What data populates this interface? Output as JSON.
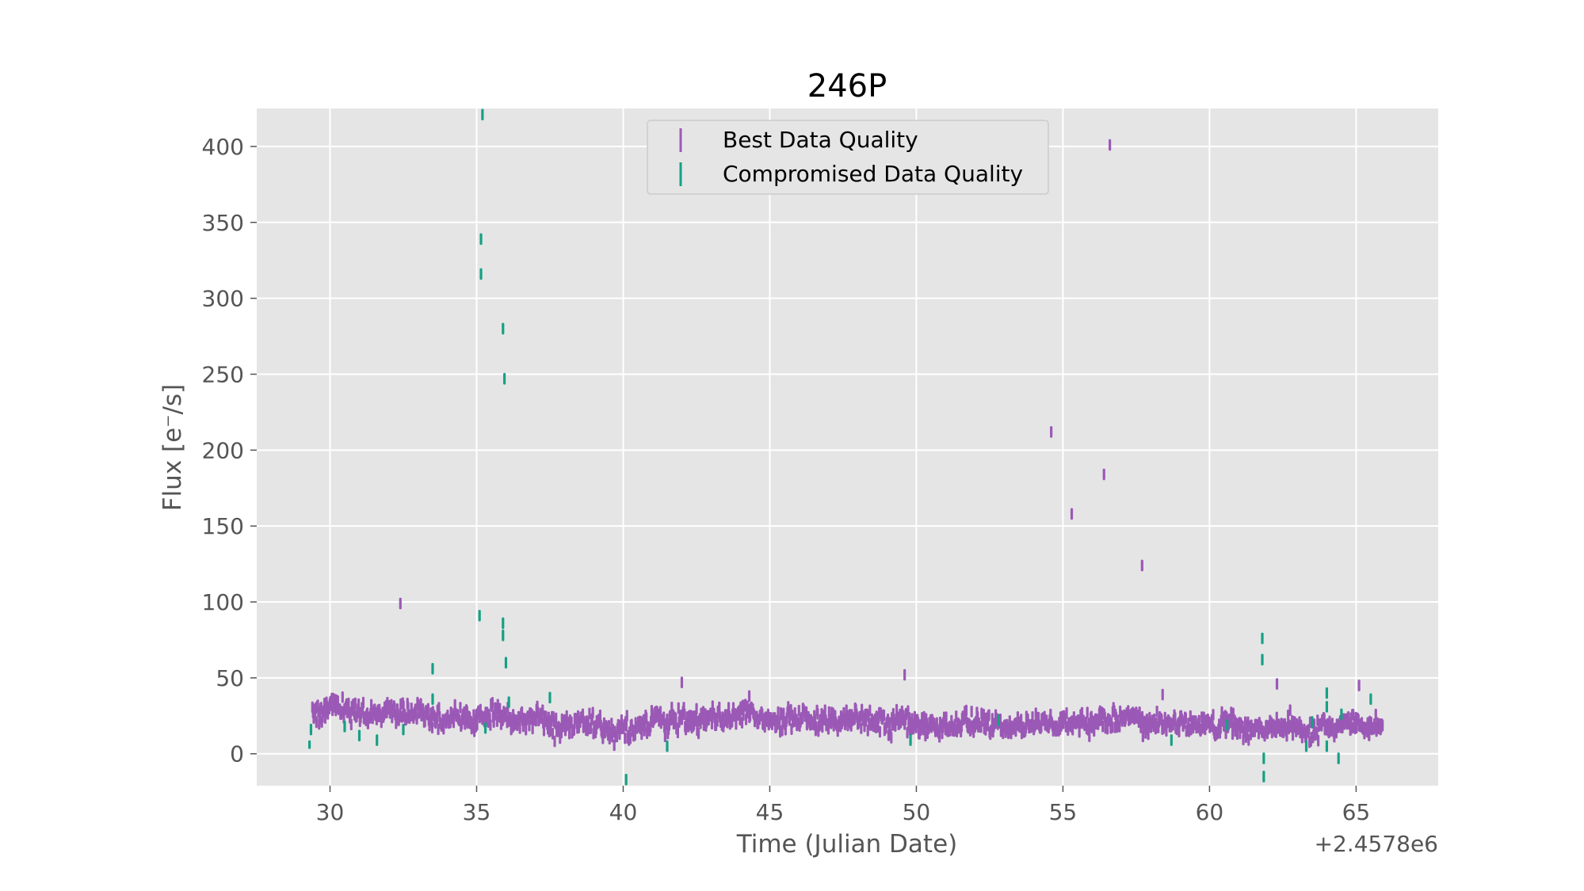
{
  "chart_data": {
    "type": "scatter",
    "title": "246P",
    "xlabel": "Time (Julian Date)",
    "ylabel": "Flux [e⁻/s]",
    "x_offset_label": "+2.4578e6",
    "xlim": [
      27.5,
      67.8
    ],
    "ylim": [
      -21,
      425
    ],
    "xticks": [
      30,
      35,
      40,
      45,
      50,
      55,
      60,
      65
    ],
    "yticks": [
      0,
      50,
      100,
      150,
      200,
      250,
      300,
      350,
      400
    ],
    "grid": true,
    "legend_placement": "upper-center",
    "series": [
      {
        "name": "Best Data Quality",
        "color": "#9b59b6",
        "baseline": {
          "x_start": 29.4,
          "x_end": 65.9,
          "levels": [
            [
              29.4,
              28
            ],
            [
              31,
              26
            ],
            [
              34,
              23
            ],
            [
              36,
              24
            ],
            [
              38,
              20
            ],
            [
              40,
              19
            ],
            [
              41.5,
              21
            ],
            [
              42,
              24
            ],
            [
              45,
              24
            ],
            [
              48,
              22
            ],
            [
              50,
              21
            ],
            [
              53,
              20
            ],
            [
              55,
              22
            ],
            [
              58,
              20
            ],
            [
              60,
              19
            ],
            [
              62,
              17
            ],
            [
              63.5,
              16
            ],
            [
              64,
              18
            ],
            [
              65.9,
              20
            ]
          ],
          "scatter": 6
        },
        "points": [
          {
            "x": 32.4,
            "y": 99,
            "err": 3
          },
          {
            "x": 42.0,
            "y": 47,
            "err": 3
          },
          {
            "x": 44.3,
            "y": 38,
            "err": 3
          },
          {
            "x": 49.6,
            "y": 52,
            "err": 3
          },
          {
            "x": 54.6,
            "y": 212,
            "err": 3
          },
          {
            "x": 55.3,
            "y": 158,
            "err": 3
          },
          {
            "x": 56.4,
            "y": 184,
            "err": 3
          },
          {
            "x": 56.6,
            "y": 401,
            "err": 3
          },
          {
            "x": 57.7,
            "y": 124,
            "err": 3
          },
          {
            "x": 58.4,
            "y": 39,
            "err": 3
          },
          {
            "x": 62.3,
            "y": 46,
            "err": 3
          },
          {
            "x": 65.1,
            "y": 45,
            "err": 3
          }
        ]
      },
      {
        "name": "Compromised Data Quality",
        "color": "#16a085",
        "points": [
          {
            "x": 29.3,
            "y": 6,
            "err": 2
          },
          {
            "x": 29.35,
            "y": 16,
            "err": 3
          },
          {
            "x": 30.5,
            "y": 18,
            "err": 3
          },
          {
            "x": 31.0,
            "y": 12,
            "err": 3
          },
          {
            "x": 31.6,
            "y": 9,
            "err": 3
          },
          {
            "x": 32.5,
            "y": 16,
            "err": 3
          },
          {
            "x": 33.5,
            "y": 56,
            "err": 3
          },
          {
            "x": 33.5,
            "y": 36,
            "err": 3
          },
          {
            "x": 35.2,
            "y": 421,
            "err": 3
          },
          {
            "x": 35.15,
            "y": 339,
            "err": 3
          },
          {
            "x": 35.15,
            "y": 316,
            "err": 3
          },
          {
            "x": 35.1,
            "y": 91,
            "err": 3
          },
          {
            "x": 35.3,
            "y": 17,
            "err": 3
          },
          {
            "x": 35.9,
            "y": 280,
            "err": 3
          },
          {
            "x": 35.95,
            "y": 247,
            "err": 3
          },
          {
            "x": 35.9,
            "y": 86,
            "err": 3
          },
          {
            "x": 35.9,
            "y": 78,
            "err": 3
          },
          {
            "x": 36.0,
            "y": 60,
            "err": 3
          },
          {
            "x": 36.1,
            "y": 34,
            "err": 3
          },
          {
            "x": 37.5,
            "y": 37,
            "err": 3
          },
          {
            "x": 40.1,
            "y": -17,
            "err": 3
          },
          {
            "x": 41.5,
            "y": 5,
            "err": 3
          },
          {
            "x": 49.8,
            "y": 9,
            "err": 3
          },
          {
            "x": 52.8,
            "y": 22,
            "err": 3
          },
          {
            "x": 58.7,
            "y": 9,
            "err": 3
          },
          {
            "x": 60.6,
            "y": 19,
            "err": 3
          },
          {
            "x": 61.8,
            "y": 76,
            "err": 3
          },
          {
            "x": 61.8,
            "y": 62,
            "err": 3
          },
          {
            "x": 61.85,
            "y": -3,
            "err": 3
          },
          {
            "x": 61.85,
            "y": -15,
            "err": 3
          },
          {
            "x": 63.3,
            "y": 5,
            "err": 3
          },
          {
            "x": 63.5,
            "y": 21,
            "err": 3
          },
          {
            "x": 64.0,
            "y": 40,
            "err": 3
          },
          {
            "x": 64.0,
            "y": 31,
            "err": 3
          },
          {
            "x": 64.0,
            "y": 5,
            "err": 3
          },
          {
            "x": 64.4,
            "y": -3,
            "err": 3
          },
          {
            "x": 64.5,
            "y": 26,
            "err": 3
          },
          {
            "x": 65.5,
            "y": 36,
            "err": 3
          }
        ]
      }
    ]
  }
}
